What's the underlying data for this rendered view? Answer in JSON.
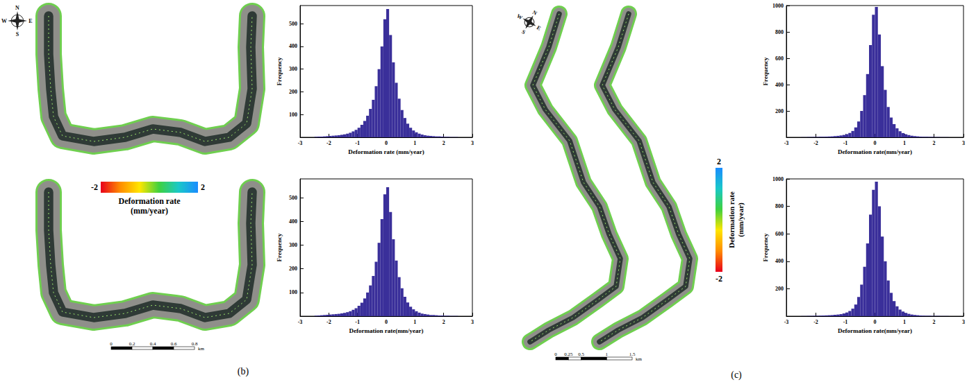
{
  "panels": [
    {
      "label": "(b)",
      "compass": [
        "N",
        "E",
        "S",
        "W"
      ],
      "colorbar": {
        "title": "Deformation rate (mm/year)",
        "range": [
          -2,
          2
        ],
        "ticks": [
          -2,
          2
        ],
        "colors": [
          "#e8001c",
          "#ff8c00",
          "#ffe600",
          "#3fd13f",
          "#19c8c8",
          "#1a8cff"
        ]
      },
      "scale_bar": {
        "ticks": [
          0,
          0.2,
          0.4,
          0.6,
          0.8
        ],
        "unit": "km"
      }
    },
    {
      "label": "(c)",
      "compass": [
        "N",
        "E",
        "S",
        "W"
      ],
      "colorbar": {
        "title": "Deformation rate (mm/year)",
        "range": [
          -2,
          2
        ],
        "ticks": [
          -2,
          2
        ],
        "colors": [
          "#e8001c",
          "#ff8c00",
          "#ffe600",
          "#3fd13f",
          "#19c8c8",
          "#1a8cff"
        ]
      },
      "scale_bar": {
        "ticks": [
          0,
          0.25,
          0.5,
          1,
          1.5
        ],
        "unit": "km"
      }
    }
  ],
  "chart_data": [
    {
      "type": "histogram",
      "xlabel": "Deformation rate (mm/year)",
      "ylabel": "Frequency",
      "color": "#3a2f9a",
      "bins": [
        -2.5,
        -2.4,
        -2.3,
        -2.2,
        -2.1,
        -2,
        -1.9,
        -1.8,
        -1.7,
        -1.6,
        -1.5,
        -1.4,
        -1.3,
        -1.2,
        -1.1,
        -1,
        -0.9,
        -0.8,
        -0.7,
        -0.6,
        -0.5,
        -0.4,
        -0.3,
        -0.2,
        -0.1,
        0,
        0.1,
        0.2,
        0.3,
        0.4,
        0.5,
        0.6,
        0.7,
        0.8,
        0.9,
        1,
        1.1,
        1.2,
        1.3,
        1.4,
        1.5,
        1.6,
        1.7,
        1.8,
        1.9,
        2,
        2.1,
        2.2,
        2.3,
        2.4,
        2.5
      ],
      "values": [
        2,
        3,
        3,
        4,
        5,
        6,
        7,
        8,
        9,
        11,
        13,
        16,
        20,
        26,
        33,
        42,
        55,
        72,
        95,
        125,
        165,
        225,
        300,
        400,
        520,
        565,
        450,
        330,
        240,
        170,
        120,
        85,
        60,
        42,
        30,
        22,
        16,
        12,
        9,
        7,
        6,
        5,
        4,
        4,
        3,
        2,
        2,
        1,
        1,
        1
      ],
      "xlim": [
        -3,
        3
      ],
      "xticks": [
        -3,
        -2,
        -1,
        0,
        1,
        2,
        3
      ],
      "ylim": [
        0,
        580
      ],
      "yticks": [
        100,
        200,
        300,
        400,
        500
      ],
      "grid": false
    },
    {
      "type": "histogram",
      "xlabel": "Deformation rate(mm/year)",
      "ylabel": "Frequency",
      "color": "#3a2f9a",
      "bins": [
        -2.5,
        -2.4,
        -2.3,
        -2.2,
        -2.1,
        -2,
        -1.9,
        -1.8,
        -1.7,
        -1.6,
        -1.5,
        -1.4,
        -1.3,
        -1.2,
        -1.1,
        -1,
        -0.9,
        -0.8,
        -0.7,
        -0.6,
        -0.5,
        -0.4,
        -0.3,
        -0.2,
        -0.1,
        0,
        0.1,
        0.2,
        0.3,
        0.4,
        0.5,
        0.6,
        0.7,
        0.8,
        0.9,
        1,
        1.1,
        1.2,
        1.3,
        1.4,
        1.5,
        1.6,
        1.7,
        1.8,
        1.9,
        2,
        2.1,
        2.2,
        2.3,
        2.4,
        2.5
      ],
      "values": [
        2,
        3,
        4,
        5,
        6,
        7,
        8,
        9,
        10,
        12,
        14,
        17,
        21,
        27,
        34,
        44,
        57,
        75,
        100,
        130,
        170,
        230,
        310,
        410,
        515,
        545,
        440,
        325,
        235,
        165,
        118,
        82,
        58,
        40,
        29,
        21,
        15,
        11,
        9,
        7,
        5,
        5,
        4,
        3,
        3,
        2,
        2,
        1,
        1,
        1
      ],
      "xlim": [
        -3,
        3
      ],
      "xticks": [
        -3,
        -2,
        -1,
        0,
        1,
        2,
        3
      ],
      "ylim": [
        0,
        580
      ],
      "yticks": [
        100,
        200,
        300,
        400,
        500
      ],
      "grid": false
    },
    {
      "type": "histogram",
      "xlabel": "Deformation rate(mm/year)",
      "ylabel": "Frequency",
      "color": "#3a2f9a",
      "bins": [
        -2.5,
        -2.4,
        -2.3,
        -2.2,
        -2.1,
        -2,
        -1.9,
        -1.8,
        -1.7,
        -1.6,
        -1.5,
        -1.4,
        -1.3,
        -1.2,
        -1.1,
        -1,
        -0.9,
        -0.8,
        -0.7,
        -0.6,
        -0.5,
        -0.4,
        -0.3,
        -0.2,
        -0.1,
        0,
        0.1,
        0.2,
        0.3,
        0.4,
        0.5,
        0.6,
        0.7,
        0.8,
        0.9,
        1,
        1.1,
        1.2,
        1.3,
        1.4,
        1.5,
        1.6,
        1.7,
        1.8,
        1.9,
        2,
        2.1,
        2.2,
        2.3,
        2.4,
        2.5
      ],
      "values": [
        1,
        1,
        2,
        2,
        3,
        3,
        4,
        4,
        5,
        6,
        7,
        9,
        11,
        14,
        18,
        24,
        33,
        48,
        75,
        120,
        200,
        320,
        480,
        700,
        930,
        990,
        780,
        540,
        360,
        230,
        150,
        100,
        68,
        46,
        32,
        23,
        17,
        12,
        9,
        7,
        5,
        4,
        4,
        3,
        3,
        2,
        2,
        1,
        1,
        1
      ],
      "xlim": [
        -3,
        3
      ],
      "xticks": [
        -3,
        -2,
        -1,
        0,
        1,
        2,
        3
      ],
      "ylim": [
        0,
        1000
      ],
      "yticks": [
        200,
        400,
        600,
        800,
        1000
      ],
      "grid": false
    },
    {
      "type": "histogram",
      "xlabel": "Deformation rate(mm/year)",
      "ylabel": "Frequency",
      "color": "#3a2f9a",
      "bins": [
        -2.5,
        -2.4,
        -2.3,
        -2.2,
        -2.1,
        -2,
        -1.9,
        -1.8,
        -1.7,
        -1.6,
        -1.5,
        -1.4,
        -1.3,
        -1.2,
        -1.1,
        -1,
        -0.9,
        -0.8,
        -0.7,
        -0.6,
        -0.5,
        -0.4,
        -0.3,
        -0.2,
        -0.1,
        0,
        0.1,
        0.2,
        0.3,
        0.4,
        0.5,
        0.6,
        0.7,
        0.8,
        0.9,
        1,
        1.1,
        1.2,
        1.3,
        1.4,
        1.5,
        1.6,
        1.7,
        1.8,
        1.9,
        2,
        2.1,
        2.2,
        2.3,
        2.4,
        2.5
      ],
      "values": [
        1,
        1,
        2,
        2,
        3,
        3,
        4,
        5,
        6,
        7,
        8,
        10,
        12,
        15,
        20,
        27,
        38,
        55,
        85,
        140,
        230,
        360,
        530,
        740,
        920,
        980,
        800,
        580,
        400,
        260,
        170,
        110,
        72,
        48,
        34,
        24,
        17,
        12,
        9,
        7,
        5,
        4,
        3,
        3,
        2,
        2,
        2,
        1,
        1,
        1
      ],
      "xlim": [
        -3,
        3
      ],
      "xticks": [
        -3,
        -2,
        -1,
        0,
        1,
        2,
        3
      ],
      "ylim": [
        0,
        1000
      ],
      "yticks": [
        200,
        400,
        600,
        800,
        1000
      ],
      "grid": false
    }
  ]
}
